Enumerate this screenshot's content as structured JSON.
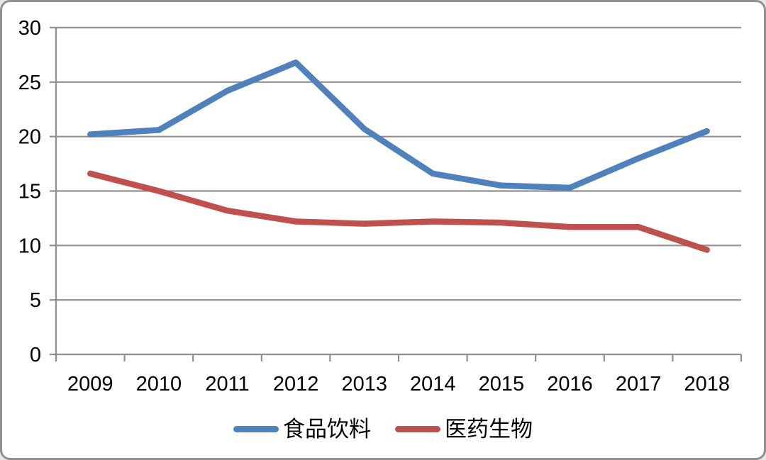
{
  "colors": {
    "background": "#ffffff",
    "frame_border": "#919191",
    "grid": "#8f8f8f",
    "axis": "#8f8f8f",
    "text": "#000000"
  },
  "chart_data": {
    "type": "line",
    "title": "",
    "categories": [
      "2009",
      "2010",
      "2011",
      "2012",
      "2013",
      "2014",
      "2015",
      "2016",
      "2017",
      "2018"
    ],
    "series": [
      {
        "name": "食品饮料",
        "color": "#4F81BD",
        "values": [
          20.2,
          20.6,
          24.2,
          26.8,
          20.7,
          16.6,
          15.5,
          15.3,
          18.0,
          20.5
        ]
      },
      {
        "name": "医药生物",
        "color": "#C0504D",
        "values": [
          16.6,
          15.0,
          13.2,
          12.2,
          12.0,
          12.2,
          12.1,
          11.7,
          11.7,
          9.6
        ]
      }
    ],
    "xlabel": "",
    "ylabel": "",
    "ylim": [
      0,
      30
    ],
    "ytick_interval": 5,
    "y_tick_labels": [
      "0",
      "5",
      "10",
      "15",
      "20",
      "25",
      "30"
    ],
    "grid": true,
    "legend_position": "bottom"
  }
}
